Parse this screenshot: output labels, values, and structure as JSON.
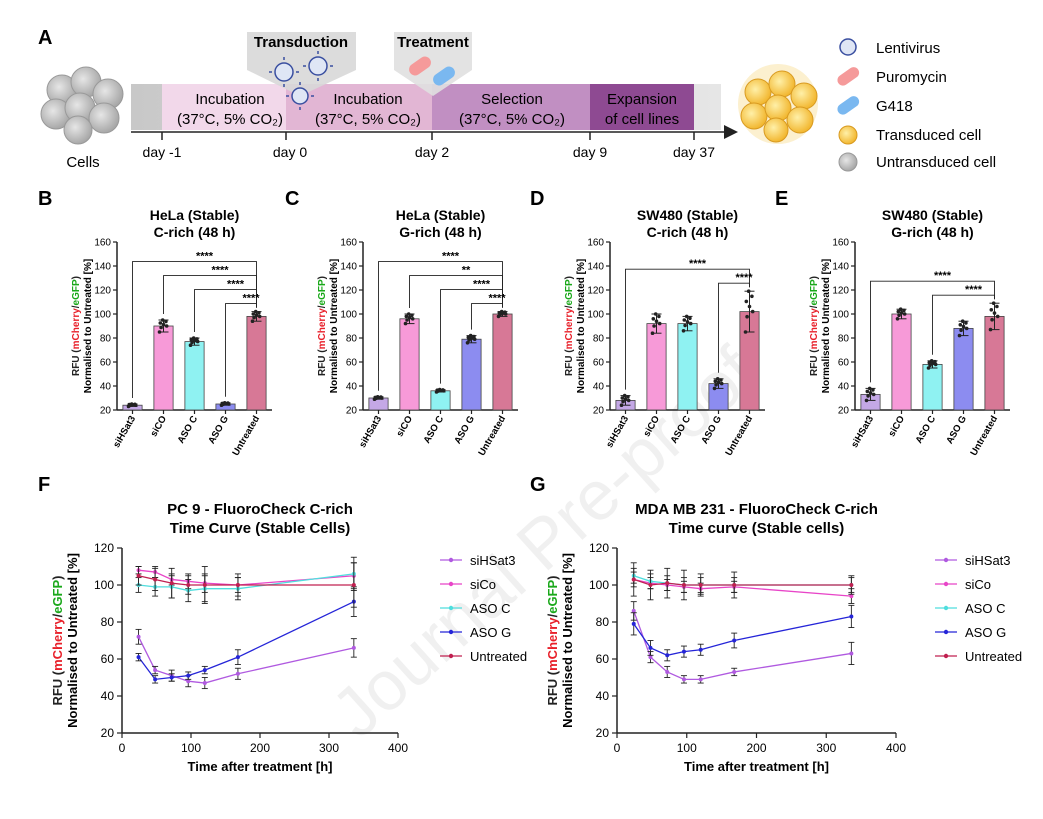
{
  "panel_labels": {
    "A": "A",
    "B": "B",
    "C": "C",
    "D": "D",
    "E": "E",
    "F": "F",
    "G": "G"
  },
  "workflow": {
    "cells_label": "Cells",
    "transduction_label": "Transduction",
    "treatment_label": "Treatment",
    "phases": [
      {
        "line1": "Incubation",
        "line2": "(37°C, 5% CO₂)"
      },
      {
        "line1": "Incubation",
        "line2": "(37°C, 5% CO₂)"
      },
      {
        "line1": "Selection",
        "line2": "(37°C, 5% CO₂)"
      },
      {
        "line1": "Expansion",
        "line2": "of cell lines"
      }
    ],
    "days": [
      "day -1",
      "day 0",
      "day 2",
      "day 9",
      "day 37"
    ],
    "legend": [
      "Lentivirus",
      "Puromycin",
      "G418",
      "Transduced cell",
      "Untransduced cell"
    ]
  },
  "watermark": "Journal Pre-proof",
  "ylabel_parts": {
    "rfu": "RFU (",
    "mcherry": "mCherry",
    "slash": "/",
    "egfp": "eGFP",
    "close": ")",
    "line2": "Normalised to Untreated [%]"
  },
  "colors": {
    "siHSat3": "#c4a8e6",
    "siCO": "#f79ad8",
    "ASOC": "#8ff2f2",
    "ASOG": "#8c8cf0",
    "Untreated": "#d77896",
    "line_siHSat3": "#b05ae0",
    "line_siCo": "#e845c8",
    "line_ASOC": "#4fdede",
    "line_ASOG": "#2525d8",
    "line_Untreated": "#c02050",
    "mcherry": "#e8202a",
    "egfp": "#1aa81a"
  },
  "chart_data": [
    {
      "panel": "B",
      "type": "bar",
      "title": "HeLa (Stable)",
      "subtitle": "C-rich (48 h)",
      "categories": [
        "siHSat3",
        "siCO",
        "ASO C",
        "ASO G",
        "Untreated"
      ],
      "values": [
        24,
        90,
        77,
        25,
        98
      ],
      "errors": [
        1,
        5,
        3,
        1,
        4
      ],
      "ylim": [
        20,
        160
      ],
      "yticks": [
        20,
        40,
        60,
        80,
        100,
        120,
        140,
        160
      ],
      "sig": [
        {
          "from": 0,
          "label": "****"
        },
        {
          "from": 1,
          "label": "****"
        },
        {
          "from": 2,
          "label": "****"
        },
        {
          "from": 3,
          "label": "****"
        }
      ]
    },
    {
      "panel": "C",
      "type": "bar",
      "title": "HeLa (Stable)",
      "subtitle": "G-rich (48 h)",
      "categories": [
        "siHSat3",
        "siCO",
        "ASO C",
        "ASO G",
        "Untreated"
      ],
      "values": [
        30,
        96,
        36,
        79,
        100
      ],
      "errors": [
        1,
        4,
        1,
        3,
        2
      ],
      "ylim": [
        20,
        160
      ],
      "yticks": [
        20,
        40,
        60,
        80,
        100,
        120,
        140,
        160
      ],
      "sig": [
        {
          "from": 0,
          "label": "****"
        },
        {
          "from": 1,
          "label": "**"
        },
        {
          "from": 2,
          "label": "****"
        },
        {
          "from": 3,
          "label": "****"
        }
      ]
    },
    {
      "panel": "D",
      "type": "bar",
      "title": "SW480 (Stable)",
      "subtitle": "C-rich (48 h)",
      "categories": [
        "siHSat3",
        "siCO",
        "ASO C",
        "ASO G",
        "Untreated"
      ],
      "values": [
        28,
        92,
        92,
        42,
        102
      ],
      "errors": [
        4,
        8,
        6,
        4,
        17
      ],
      "ylim": [
        20,
        160
      ],
      "yticks": [
        20,
        40,
        60,
        80,
        100,
        120,
        140,
        160
      ],
      "sig": [
        {
          "from": 0,
          "label": "****"
        },
        {
          "from": 3,
          "label": "****"
        }
      ]
    },
    {
      "panel": "E",
      "type": "bar",
      "title": "SW480 (Stable)",
      "subtitle": "G-rich (48 h)",
      "categories": [
        "siHSat3",
        "siCO",
        "ASO C",
        "ASO G",
        "Untreated"
      ],
      "values": [
        33,
        100,
        58,
        88,
        98
      ],
      "errors": [
        5,
        4,
        3,
        6,
        11
      ],
      "ylim": [
        20,
        160
      ],
      "yticks": [
        20,
        40,
        60,
        80,
        100,
        120,
        140,
        160
      ],
      "sig": [
        {
          "from": 0,
          "label": "****"
        },
        {
          "from": 2,
          "label": "****"
        }
      ]
    },
    {
      "panel": "F",
      "type": "line",
      "title": "PC 9 - FluoroCheck C-rich",
      "subtitle": "Time Curve (Stable Cells)",
      "xlabel": "Time after treatment [h]",
      "xlim": [
        0,
        400
      ],
      "xticks": [
        0,
        100,
        200,
        300,
        400
      ],
      "ylim": [
        20,
        120
      ],
      "yticks": [
        20,
        40,
        60,
        80,
        100,
        120
      ],
      "x": [
        24,
        48,
        72,
        96,
        120,
        168,
        336
      ],
      "series": [
        {
          "name": "siHSat3",
          "values": [
            72,
            54,
            51,
            48,
            47,
            52,
            66
          ],
          "errors": [
            4,
            2,
            3,
            3,
            3,
            3,
            5
          ]
        },
        {
          "name": "siCo",
          "values": [
            108,
            107,
            103,
            102,
            101,
            100,
            105
          ],
          "errors": [
            2,
            3,
            3,
            4,
            5,
            4,
            7
          ]
        },
        {
          "name": "ASO C",
          "values": [
            100,
            99,
            99,
            97,
            98,
            98,
            106
          ],
          "errors": [
            4,
            5,
            6,
            6,
            7,
            6,
            9
          ]
        },
        {
          "name": "ASO G",
          "values": [
            61,
            49,
            50,
            51,
            54,
            61,
            91
          ],
          "errors": [
            2,
            2,
            2,
            2,
            2,
            4,
            8
          ]
        },
        {
          "name": "Untreated",
          "values": [
            105,
            103,
            101,
            100,
            100,
            100,
            100
          ],
          "errors": [
            5,
            6,
            8,
            5,
            10,
            6,
            12
          ]
        }
      ]
    },
    {
      "panel": "G",
      "type": "line",
      "title": "MDA MB 231 - FluoroCheck C-rich",
      "subtitle": "Time curve (Stable cells)",
      "xlabel": "Time after treatment [h]",
      "xlim": [
        0,
        400
      ],
      "xticks": [
        0,
        100,
        200,
        300,
        400
      ],
      "ylim": [
        20,
        120
      ],
      "yticks": [
        20,
        40,
        60,
        80,
        100,
        120
      ],
      "x": [
        24,
        48,
        72,
        96,
        120,
        168,
        336
      ],
      "series": [
        {
          "name": "siHSat3",
          "values": [
            86,
            61,
            53,
            49,
            49,
            53,
            63
          ],
          "errors": [
            5,
            3,
            3,
            2,
            2,
            2,
            6
          ]
        },
        {
          "name": "siCo",
          "values": [
            103,
            101,
            100,
            99,
            98,
            99,
            94
          ],
          "errors": [
            4,
            3,
            3,
            3,
            3,
            3,
            4
          ]
        },
        {
          "name": "ASO C",
          "values": [
            105,
            102,
            101,
            100,
            100,
            100,
            100
          ],
          "errors": [
            4,
            4,
            4,
            4,
            4,
            4,
            4
          ]
        },
        {
          "name": "ASO G",
          "values": [
            79,
            66,
            62,
            64,
            65,
            70,
            83
          ],
          "errors": [
            6,
            4,
            3,
            3,
            3,
            4,
            6
          ]
        },
        {
          "name": "Untreated",
          "values": [
            103,
            100,
            101,
            100,
            100,
            100,
            100
          ],
          "errors": [
            9,
            8,
            8,
            8,
            6,
            7,
            5
          ]
        }
      ]
    }
  ]
}
